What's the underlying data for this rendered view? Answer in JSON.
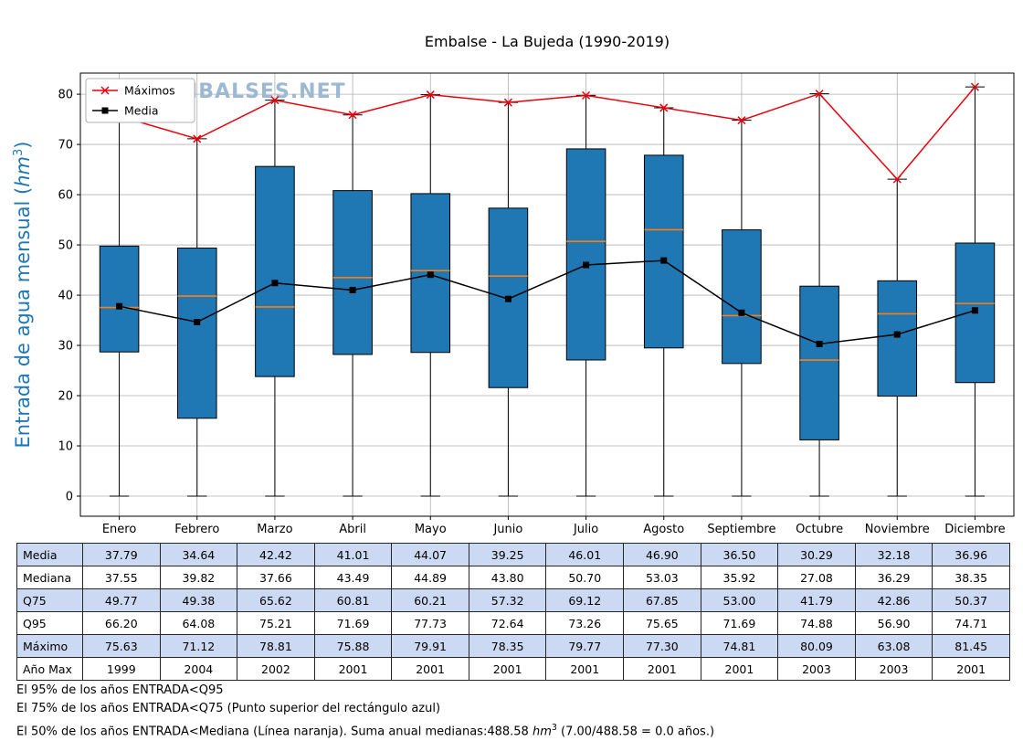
{
  "page": {
    "watermark": "WWW.EMBALSES.NET"
  },
  "chart_data": {
    "type": "boxplot",
    "title": "Embalse - La Bujeda (1990-2019)",
    "ylabel": {
      "pre": "Entrada de agua mensual (",
      "unit": "hm",
      "exp": "3",
      "post": ")"
    },
    "categories": [
      "Enero",
      "Febrero",
      "Marzo",
      "Abril",
      "Mayo",
      "Junio",
      "Julio",
      "Agosto",
      "Septiembre",
      "Octubre",
      "Noviembre",
      "Diciembre"
    ],
    "ylim": [
      -4,
      84.2
    ],
    "yticks": [
      0,
      10,
      20,
      30,
      40,
      50,
      60,
      70,
      80
    ],
    "grid": true,
    "legend": {
      "position": "upper-left",
      "entries": [
        {
          "label": "Máximos",
          "marker": "x",
          "color": "#e8000b"
        },
        {
          "label": "Media",
          "marker": "square",
          "color": "#000000"
        }
      ]
    },
    "series": {
      "media": [
        37.79,
        34.64,
        42.42,
        41.01,
        44.07,
        39.25,
        46.01,
        46.9,
        36.5,
        30.29,
        32.18,
        36.96
      ],
      "mediana": [
        37.55,
        39.82,
        37.66,
        43.49,
        44.89,
        43.8,
        50.7,
        53.03,
        35.92,
        27.08,
        36.29,
        38.35
      ],
      "q75": [
        49.77,
        49.38,
        65.62,
        60.81,
        60.21,
        57.32,
        69.12,
        67.85,
        53.0,
        41.79,
        42.86,
        50.37
      ],
      "q95": [
        66.2,
        64.08,
        75.21,
        71.69,
        77.73,
        72.64,
        73.26,
        75.65,
        71.69,
        74.88,
        56.9,
        74.71
      ],
      "maximo": [
        75.63,
        71.12,
        78.81,
        75.88,
        79.91,
        78.35,
        79.77,
        77.3,
        74.81,
        80.09,
        63.08,
        81.45
      ],
      "anio_max": [
        1999,
        2004,
        2002,
        2001,
        2001,
        2001,
        2001,
        2001,
        2001,
        2003,
        2003,
        2001
      ],
      "q25_estimated": [
        28.7,
        15.5,
        23.8,
        28.2,
        28.6,
        21.6,
        27.1,
        29.5,
        26.4,
        11.2,
        19.9,
        22.6
      ],
      "whisker_min": 0
    },
    "colors": {
      "box_fill": "#1f77b4",
      "box_edge": "#000000",
      "median_line": "#ff7f0e",
      "maximos_line": "#e8000b",
      "media_line": "#000000",
      "grid": "#b0b0b0",
      "axis_label": "#1f77b4",
      "watermark": "#9db8d2"
    }
  },
  "table": {
    "alt_row_color": "#ccd9f2",
    "row_labels": [
      "Media",
      "Mediana",
      "Q75",
      "Q95",
      "Máximo",
      "Año Max"
    ],
    "rows": [
      [
        "37.79",
        "34.64",
        "42.42",
        "41.01",
        "44.07",
        "39.25",
        "46.01",
        "46.90",
        "36.50",
        "30.29",
        "32.18",
        "36.96"
      ],
      [
        "37.55",
        "39.82",
        "37.66",
        "43.49",
        "44.89",
        "43.80",
        "50.70",
        "53.03",
        "35.92",
        "27.08",
        "36.29",
        "38.35"
      ],
      [
        "49.77",
        "49.38",
        "65.62",
        "60.81",
        "60.21",
        "57.32",
        "69.12",
        "67.85",
        "53.00",
        "41.79",
        "42.86",
        "50.37"
      ],
      [
        "66.20",
        "64.08",
        "75.21",
        "71.69",
        "77.73",
        "72.64",
        "73.26",
        "75.65",
        "71.69",
        "74.88",
        "56.90",
        "74.71"
      ],
      [
        "75.63",
        "71.12",
        "78.81",
        "75.88",
        "79.91",
        "78.35",
        "79.77",
        "77.30",
        "74.81",
        "80.09",
        "63.08",
        "81.45"
      ],
      [
        "1999",
        "2004",
        "2002",
        "2001",
        "2001",
        "2001",
        "2001",
        "2001",
        "2001",
        "2003",
        "2003",
        "2001"
      ]
    ]
  },
  "footer": {
    "line1": "El 95% de los años ENTRADA<Q95",
    "line2": "El 75% de los años ENTRADA<Q75 (Punto superior del rectángulo azul)",
    "line3": {
      "pre": "El 50% de los años ENTRADA<Mediana (Línea naranja). Suma anual medianas:488.58 ",
      "unit": "hm",
      "exp": "3",
      "post": " (7.00/488.58 = 0.0 años.)"
    }
  }
}
